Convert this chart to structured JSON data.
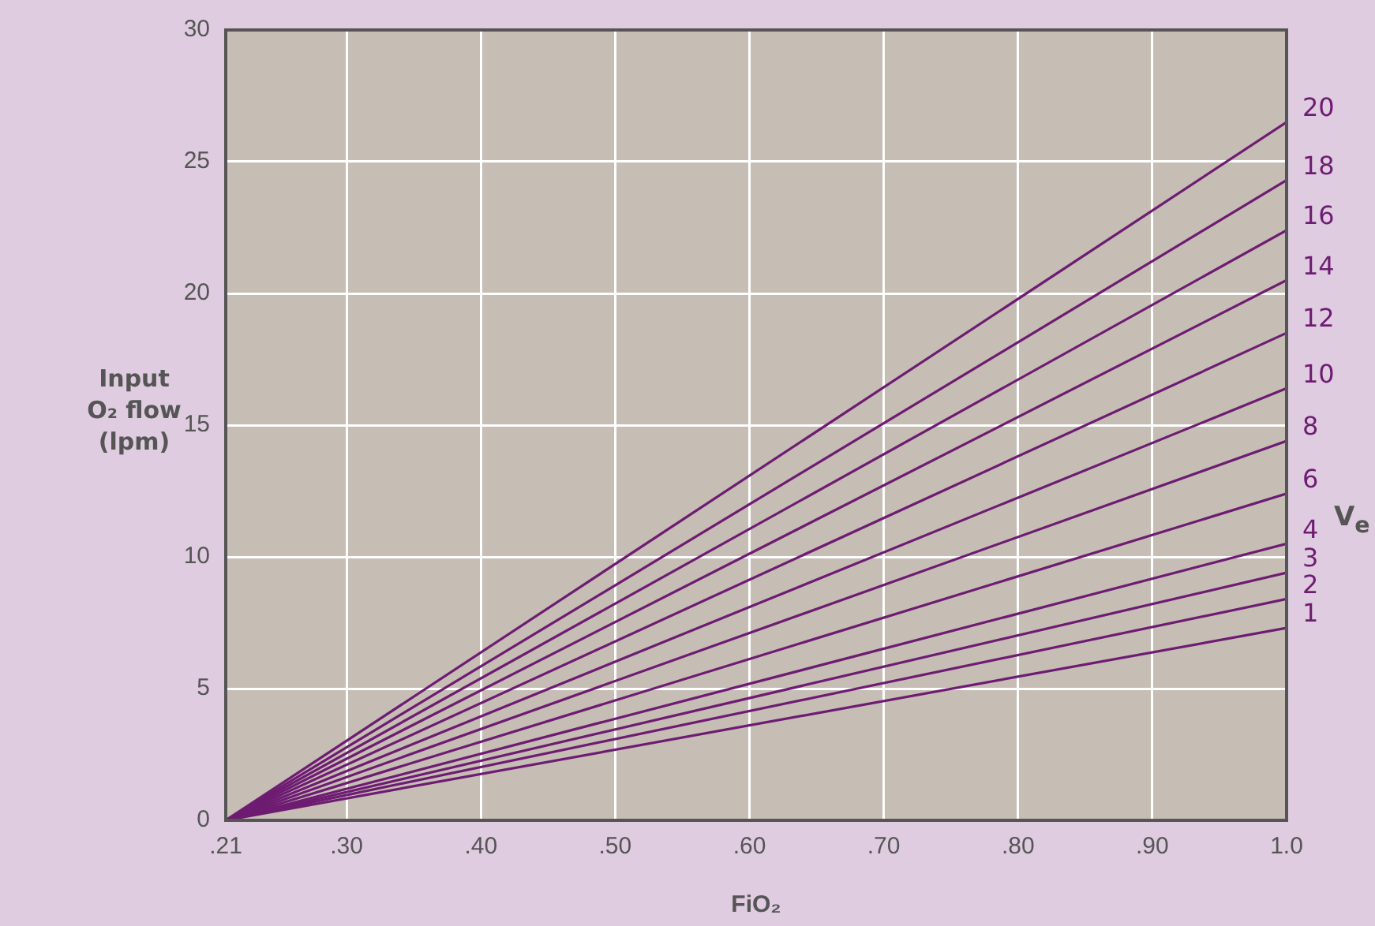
{
  "chart_data": {
    "type": "line",
    "xlabel": "FiO₂",
    "ylabel": "Input O₂ flow (lpm)",
    "y2label": "V$_{e}$",
    "xlim": [
      0.21,
      1.0
    ],
    "ylim": [
      0,
      30
    ],
    "xticks": [
      {
        "value": 0.21,
        "label": ".21"
      },
      {
        "value": 0.3,
        "label": ".30"
      },
      {
        "value": 0.4,
        "label": ".40"
      },
      {
        "value": 0.5,
        "label": ".50"
      },
      {
        "value": 0.6,
        "label": ".60"
      },
      {
        "value": 0.7,
        "label": ".70"
      },
      {
        "value": 0.8,
        "label": ".80"
      },
      {
        "value": 0.9,
        "label": ".90"
      },
      {
        "value": 1.0,
        "label": "1.0"
      }
    ],
    "yticks": [
      0,
      5,
      10,
      15,
      20,
      25,
      30
    ],
    "x": [
      0.21,
      1.0
    ],
    "series": [
      {
        "name": "20",
        "color": "#6e1c72",
        "values": [
          0,
          26.5
        ]
      },
      {
        "name": "18",
        "color": "#6e1c72",
        "values": [
          0,
          24.3
        ]
      },
      {
        "name": "16",
        "color": "#6e1c72",
        "values": [
          0,
          22.4
        ]
      },
      {
        "name": "14",
        "color": "#6e1c72",
        "values": [
          0,
          20.5
        ]
      },
      {
        "name": "12",
        "color": "#6e1c72",
        "values": [
          0,
          18.5
        ]
      },
      {
        "name": "10",
        "color": "#6e1c72",
        "values": [
          0,
          16.4
        ]
      },
      {
        "name": "8",
        "color": "#6e1c72",
        "values": [
          0,
          14.4
        ]
      },
      {
        "name": "6",
        "color": "#6e1c72",
        "values": [
          0,
          12.4
        ]
      },
      {
        "name": "4",
        "color": "#6e1c72",
        "values": [
          0,
          10.5
        ]
      },
      {
        "name": "3",
        "color": "#6e1c72",
        "values": [
          0,
          9.4
        ]
      },
      {
        "name": "2",
        "color": "#6e1c72",
        "values": [
          0,
          8.4
        ]
      },
      {
        "name": "1",
        "color": "#6e1c72",
        "values": [
          0,
          7.3
        ]
      }
    ],
    "grid": true,
    "legend": false,
    "marker": "none",
    "line_style": "solid"
  }
}
